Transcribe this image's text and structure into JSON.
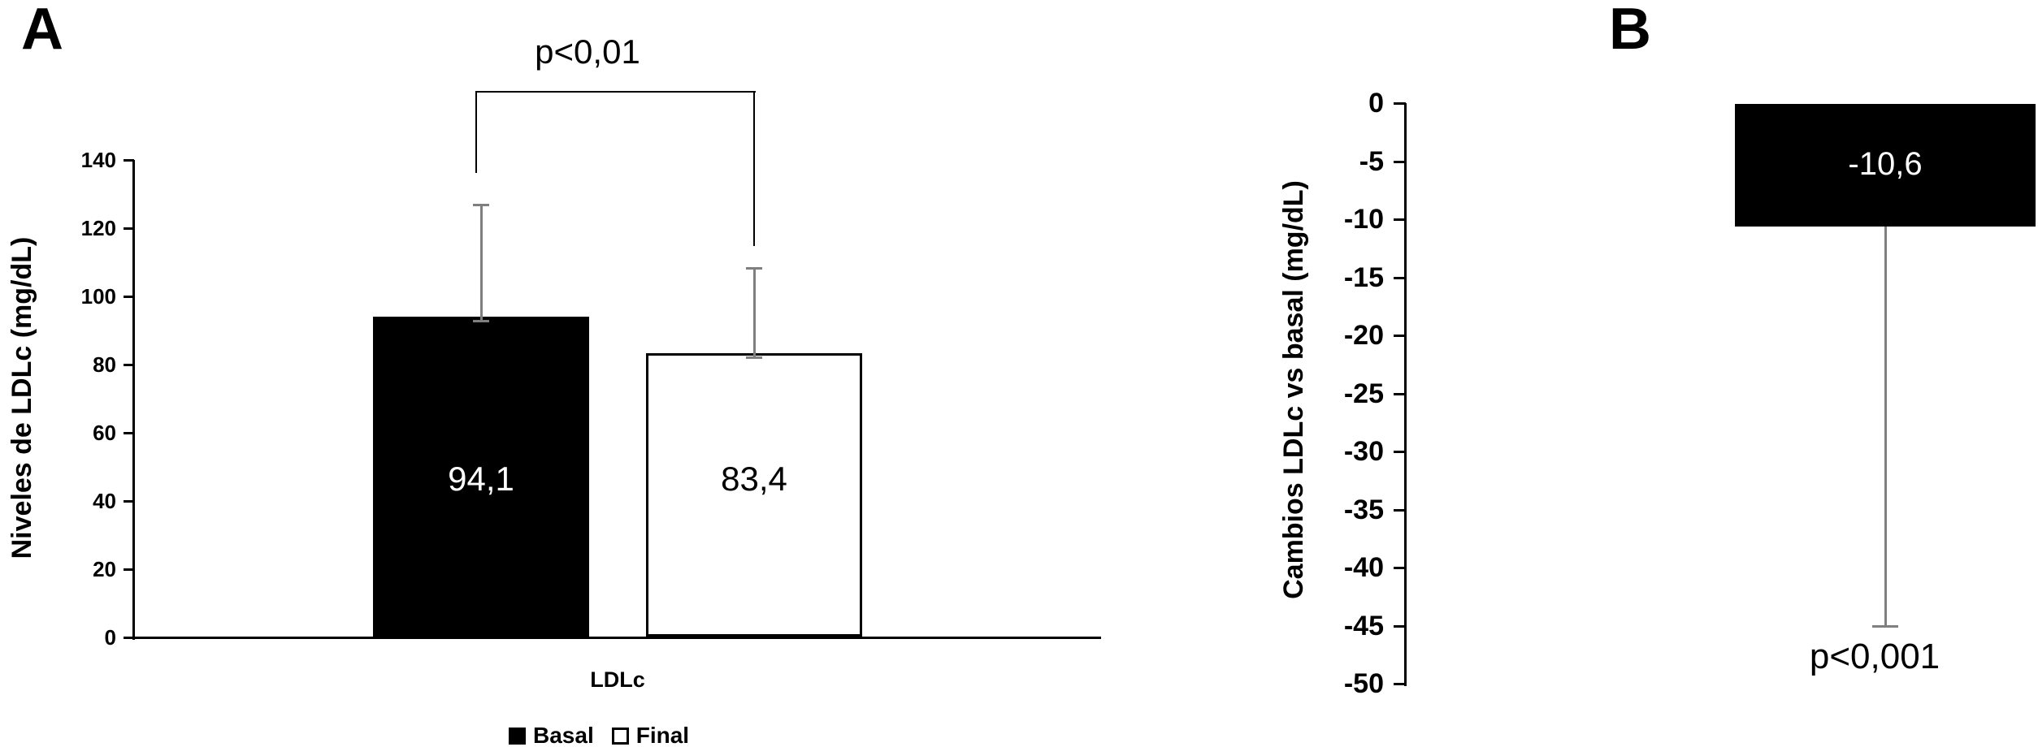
{
  "chart_data": [
    {
      "id": "panel-A",
      "type": "bar",
      "panel_label": "A",
      "ylabel": "Niveles de LDLc (mg/dL)",
      "xlabel": "",
      "categories": [
        "LDLc"
      ],
      "series": [
        {
          "name": "Basal",
          "values": [
            94.1
          ],
          "value_labels": [
            "94,1"
          ],
          "error_up": [
            32.9
          ],
          "fill": "#000000",
          "border": "#000000",
          "label_color": "#ffffff"
        },
        {
          "name": "Final",
          "values": [
            83.4
          ],
          "value_labels": [
            "83,4"
          ],
          "error_up": [
            24.9
          ],
          "fill": "#ffffff",
          "border": "#000000",
          "label_color": "#000000"
        }
      ],
      "ylim": [
        0,
        140
      ],
      "ytick_step": 20,
      "ytick_labels": [
        "0",
        "20",
        "40",
        "60",
        "80",
        "100",
        "120",
        "140"
      ],
      "grid": false,
      "legend_position": "bottom",
      "annotation": {
        "text": "p<0,01",
        "type": "significance-bracket",
        "between": [
          "Basal",
          "Final"
        ]
      }
    },
    {
      "id": "panel-B",
      "type": "bar",
      "panel_label": "B",
      "ylabel": "Cambios LDLc vs basal (mg/dL)",
      "xlabel": "",
      "categories": [
        ""
      ],
      "series": [
        {
          "name": "Cambio LDLc",
          "values": [
            -10.6
          ],
          "value_labels": [
            "-10,6"
          ],
          "error_down": [
            34.4
          ],
          "fill": "#000000",
          "border": "#000000",
          "label_color": "#ffffff"
        }
      ],
      "ylim": [
        -50,
        0
      ],
      "ytick_step": 5,
      "ytick_labels": [
        "0",
        "-5",
        "-10",
        "-15",
        "-20",
        "-25",
        "-30",
        "-35",
        "-40",
        "-45",
        "-50"
      ],
      "grid": false,
      "legend_position": "none",
      "annotation": {
        "text": "p<0,001",
        "type": "text-below-whisker"
      }
    }
  ],
  "colors": {
    "background": "#ffffff",
    "axis": "#000000",
    "error_bar": "#7f7f7f",
    "bracket": "#000000",
    "bar_filled": "#000000",
    "bar_open": "#ffffff"
  }
}
